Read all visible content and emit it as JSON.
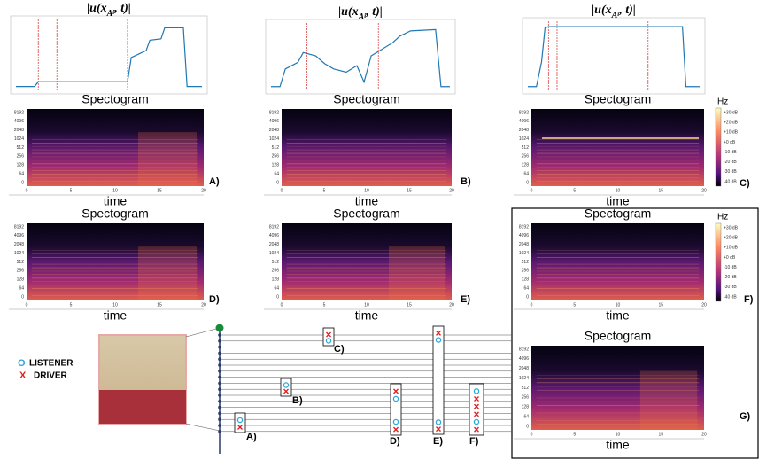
{
  "plots": [
    {
      "title": {
        "open": "|u(x",
        "sub": "A",
        "subsub": "i",
        "close": ", t)|"
      }
    },
    {
      "title": {
        "open": "|u(x",
        "sub": "A",
        "subsub": "i",
        "close": ", t)|"
      }
    },
    {
      "title": {
        "open": "|u(x",
        "sub": "A",
        "subsub": "i",
        "close": ", t)|"
      }
    }
  ],
  "spectrograms": [
    {
      "title": "Spectogram",
      "freq_ticks": [
        8192,
        4096,
        2048,
        1024,
        512,
        256,
        128,
        64,
        0
      ],
      "time_ticks": [
        0,
        5,
        10,
        15,
        20
      ],
      "x_label": "time",
      "label": "A)"
    },
    {
      "title": "Spectogram",
      "freq_ticks": [
        8192,
        4096,
        2048,
        1024,
        512,
        256,
        128,
        64,
        0
      ],
      "time_ticks": [
        0,
        5,
        10,
        15,
        20
      ],
      "x_label": "time",
      "label": "B)"
    },
    {
      "title": "Spectogram",
      "freq_ticks": [
        8192,
        4096,
        2048,
        1024,
        512,
        256,
        128,
        64,
        0
      ],
      "time_ticks": [
        0,
        5,
        10,
        15,
        20
      ],
      "x_label": "time",
      "label": "C)"
    },
    {
      "title": "Spectogram",
      "freq_ticks": [
        8192,
        4096,
        2048,
        1024,
        512,
        256,
        128,
        64,
        0
      ],
      "time_ticks": [
        0,
        5,
        10,
        15,
        20
      ],
      "x_label": "time",
      "label": "D)"
    },
    {
      "title": "Spectogram",
      "freq_ticks": [
        8192,
        4096,
        2048,
        1024,
        512,
        256,
        128,
        64,
        0
      ],
      "time_ticks": [
        0,
        5,
        10,
        15,
        20
      ],
      "x_label": "time",
      "label": "E)"
    },
    {
      "title": "Spectogram",
      "freq_ticks": [
        8192,
        4096,
        2048,
        1024,
        512,
        256,
        128,
        64,
        0
      ],
      "time_ticks": [
        0,
        5,
        10,
        15,
        20
      ],
      "x_label": "time",
      "label": "F)"
    },
    {
      "title": "Spectogram",
      "freq_ticks": [
        8192,
        4096,
        2048,
        1024,
        512,
        256,
        128,
        64,
        0
      ],
      "time_ticks": [
        0,
        5,
        10,
        15,
        20
      ],
      "x_label": "time",
      "label": "G)"
    }
  ],
  "colorbars": [
    {
      "unit": "Hz",
      "ticks": [
        "+30 dB",
        "+20 dB",
        "+10 dB",
        "+0 dB",
        "-10 dB",
        "-20 dB",
        "-30 dB",
        "-40 dB"
      ]
    },
    {
      "unit": "Hz",
      "ticks": [
        "+30 dB",
        "+20 dB",
        "+10 dB",
        "+0 dB",
        "-10 dB",
        "-20 dB",
        "-30 dB",
        "-40 dB"
      ]
    }
  ],
  "legend": {
    "listener": {
      "symbol": "O",
      "text": "LISTENER"
    },
    "driver": {
      "symbol": "X",
      "text": "DRIVER"
    }
  },
  "array_labels": [
    "A)",
    "B)",
    "C)",
    "D)",
    "E)",
    "F)"
  ]
}
